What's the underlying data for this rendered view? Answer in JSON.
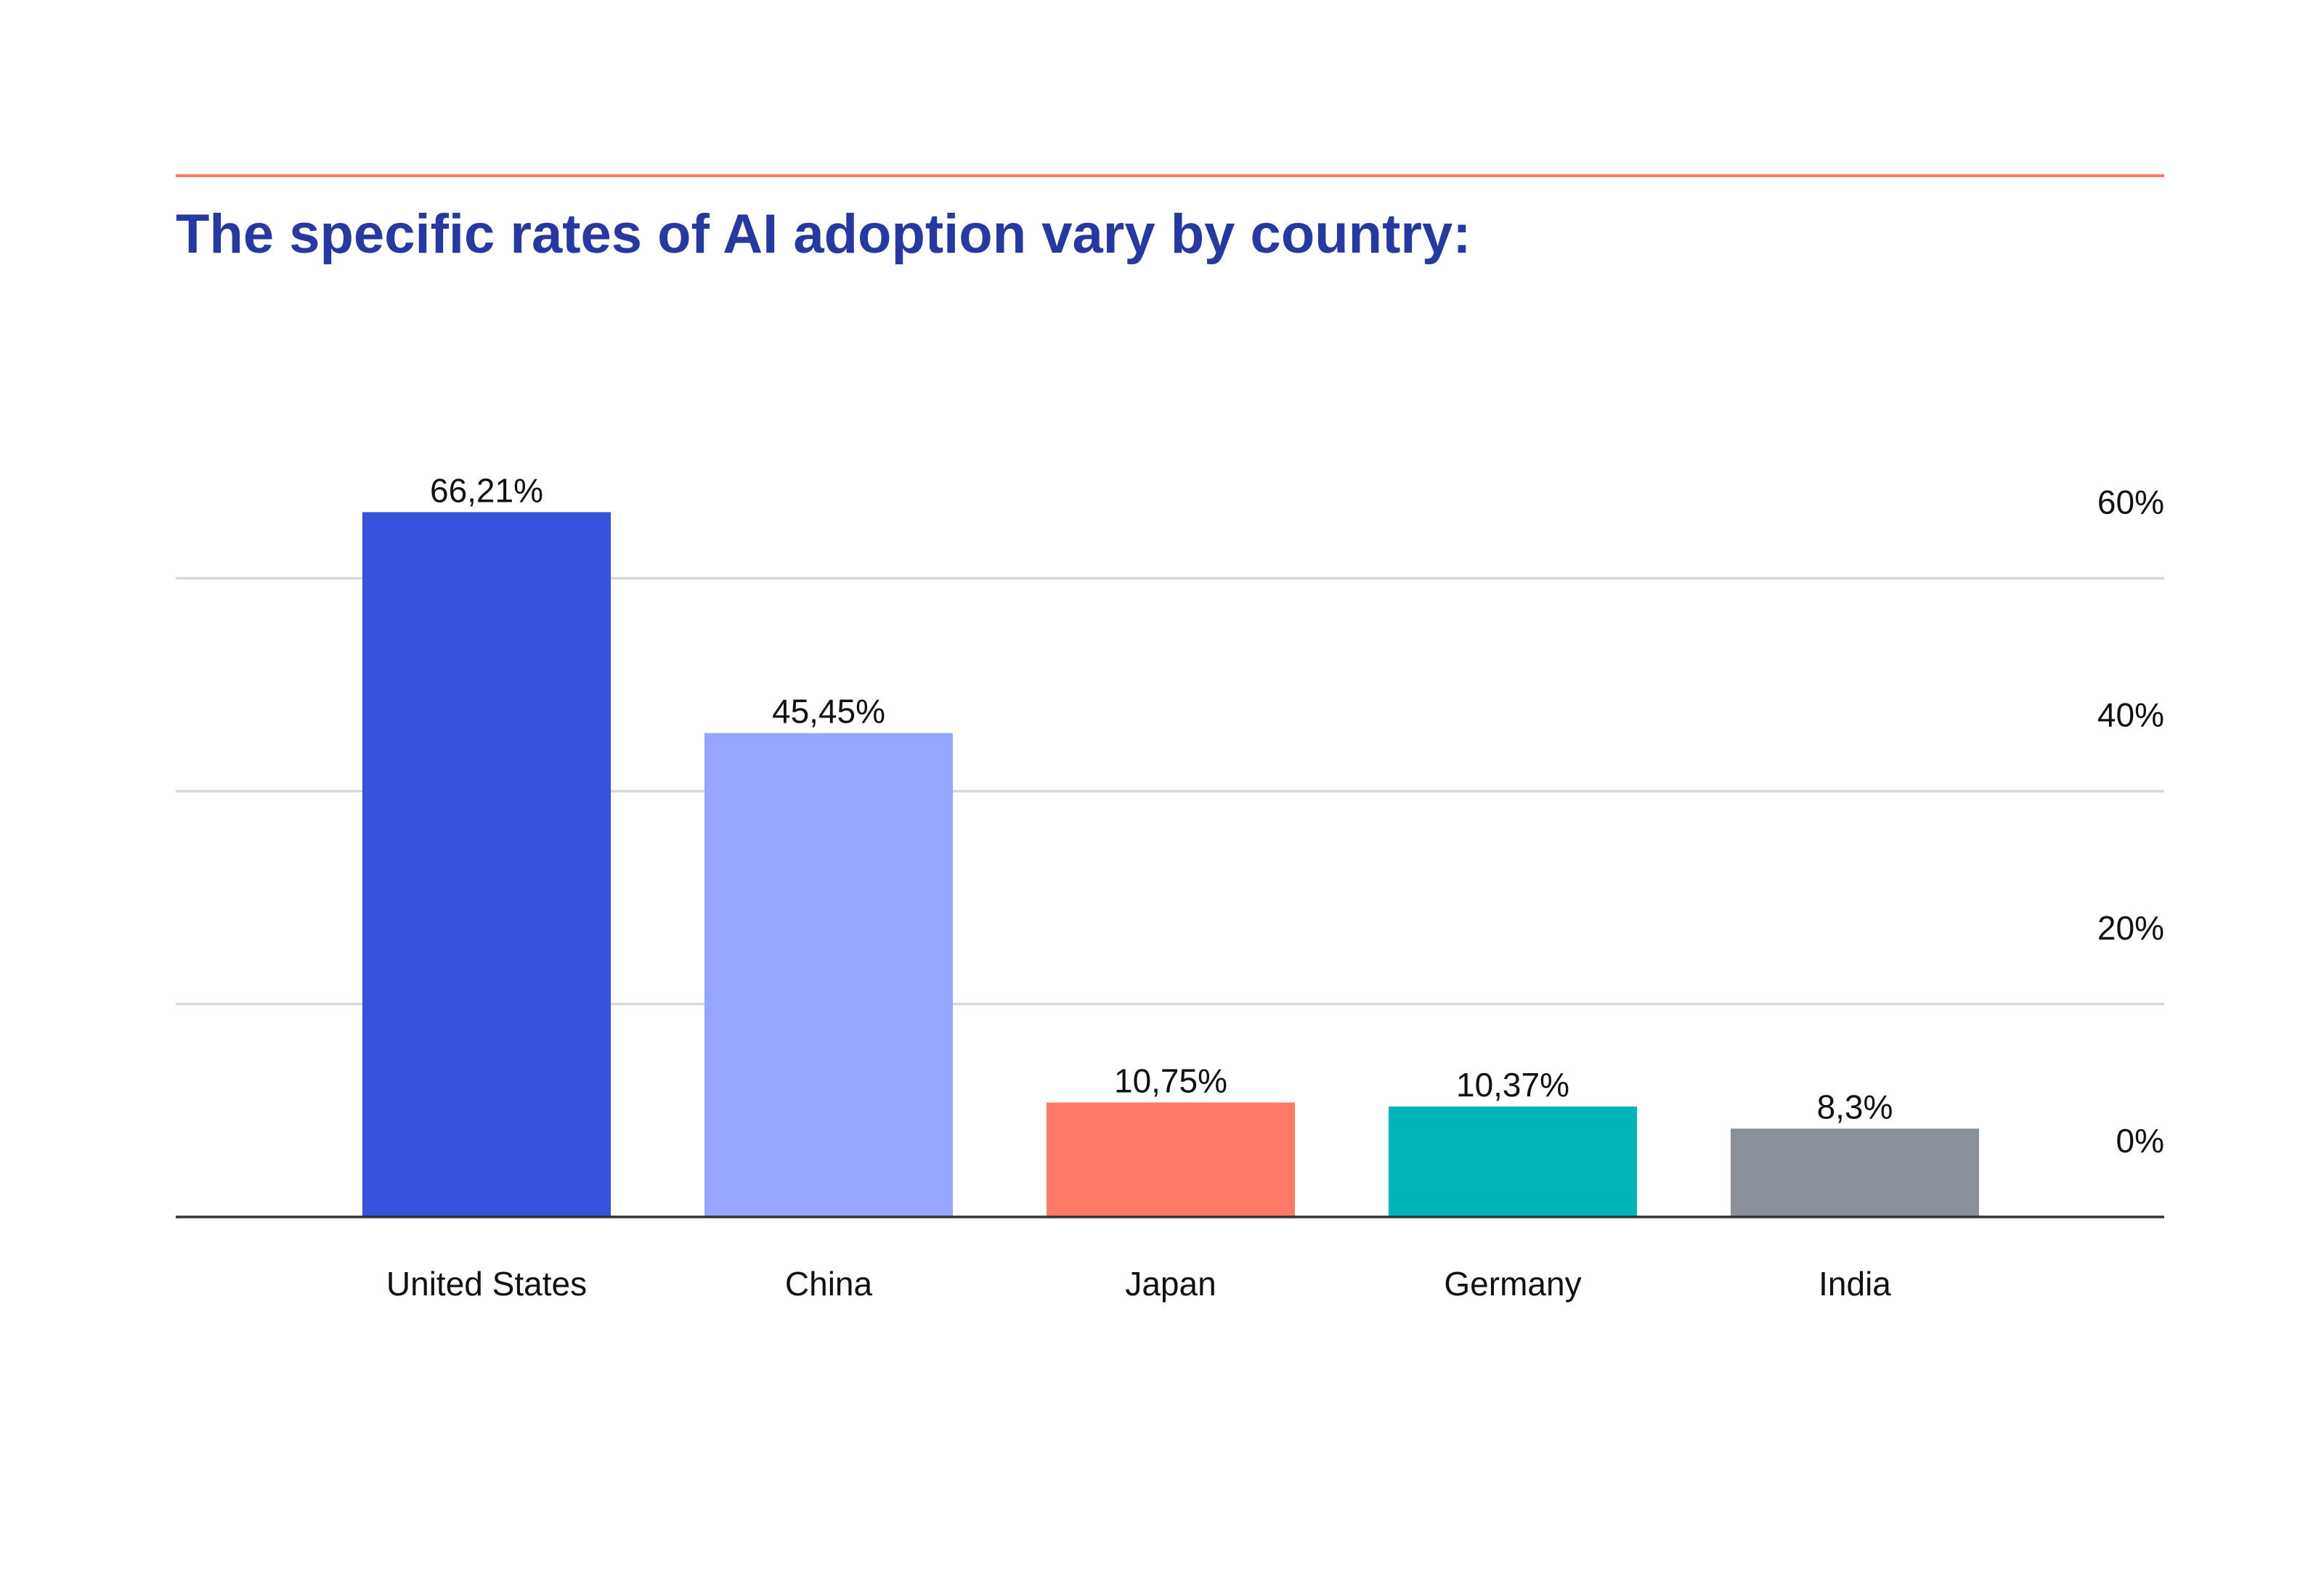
{
  "chart_data": {
    "type": "bar",
    "title": "The specific rates of AI adoption vary by country:",
    "xlabel": "",
    "ylabel": "",
    "categories": [
      "United States",
      "China",
      "Japan",
      "Germany",
      "India"
    ],
    "values": [
      66.21,
      45.45,
      10.75,
      10.37,
      8.3
    ],
    "value_labels": [
      "66,21%",
      "45,45%",
      "10,75%",
      "10,37%",
      "8,3%"
    ],
    "bar_colors": [
      "#3752DD",
      "#96A5FF",
      "#FF7A66",
      "#00B5B8",
      "#8A909A"
    ],
    "ylim": [
      0,
      66.2
    ],
    "y_ticks": [
      0,
      20,
      40,
      60
    ],
    "y_tick_labels": [
      "0%",
      "20%",
      "40%",
      "60%"
    ],
    "y_axis_side": "right",
    "grid": true,
    "legend": "none"
  },
  "colors": {
    "title": "#27389E",
    "accent_rule": "#FF7A66",
    "gridline": "#D5D9E0",
    "baseline": "#333333",
    "text": "#111111"
  }
}
